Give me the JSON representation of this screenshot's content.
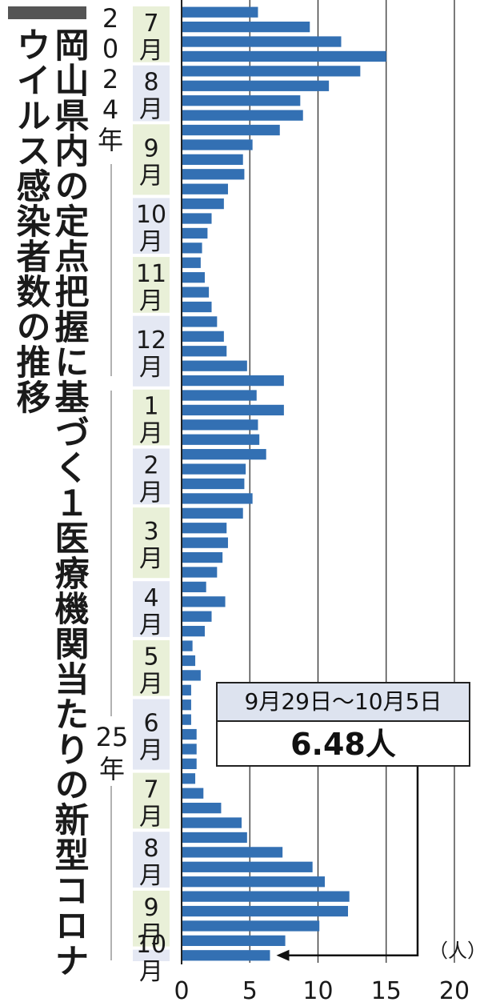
{
  "title_lines": [
    "岡山県内の定点把握に基づく",
    "１医療機関当たりの新型コロナウイルス感染者数の推移"
  ],
  "callout": {
    "date": "9月29日～10月5日",
    "value": "6.48人"
  },
  "colors": {
    "bar": "#3370b3",
    "grid": "#222222",
    "month_odd": "#e9f0d8",
    "month_even": "#e4e8f3",
    "text": "#1a1a1a"
  },
  "chart_data": {
    "type": "bar",
    "orientation": "horizontal",
    "title": "岡山県内の定点把握に基づく１医療機関当たりの新型コロナウイルス感染者数の推移",
    "xlabel": "",
    "xunit": "（人）",
    "xlim": [
      0,
      20
    ],
    "xticks": [
      0,
      5,
      10,
      15,
      20
    ],
    "grid": true,
    "year_labels": [
      "2024年",
      "25年"
    ],
    "months": [
      {
        "label": "7月",
        "weeks": 4
      },
      {
        "label": "8月",
        "weeks": 4
      },
      {
        "label": "9月",
        "weeks": 5
      },
      {
        "label": "10月",
        "weeks": 4
      },
      {
        "label": "11月",
        "weeks": 4
      },
      {
        "label": "12月",
        "weeks": 5
      },
      {
        "label": "1月",
        "weeks": 4
      },
      {
        "label": "2月",
        "weeks": 4
      },
      {
        "label": "3月",
        "weeks": 5
      },
      {
        "label": "4月",
        "weeks": 4
      },
      {
        "label": "5月",
        "weeks": 4
      },
      {
        "label": "6月",
        "weeks": 5
      },
      {
        "label": "7月",
        "weeks": 4
      },
      {
        "label": "8月",
        "weeks": 4
      },
      {
        "label": "9月",
        "weeks": 4
      },
      {
        "label": "10月",
        "weeks": 1
      }
    ],
    "values": [
      5.6,
      9.4,
      11.7,
      15.0,
      13.1,
      10.8,
      8.7,
      8.9,
      7.2,
      5.2,
      4.5,
      4.6,
      3.4,
      3.1,
      2.2,
      1.9,
      1.5,
      1.4,
      1.7,
      2.0,
      2.2,
      2.6,
      3.1,
      3.3,
      4.8,
      7.5,
      5.5,
      7.5,
      5.6,
      5.7,
      6.2,
      4.7,
      4.6,
      5.2,
      4.5,
      3.3,
      3.4,
      3.0,
      2.6,
      1.8,
      3.2,
      2.2,
      1.7,
      0.8,
      1.0,
      1.4,
      0.7,
      0.7,
      0.7,
      1.1,
      1.1,
      1.1,
      1.0,
      1.6,
      2.9,
      4.4,
      4.8,
      7.4,
      9.6,
      10.5,
      12.3,
      12.2,
      10.1,
      7.6,
      6.48
    ]
  }
}
